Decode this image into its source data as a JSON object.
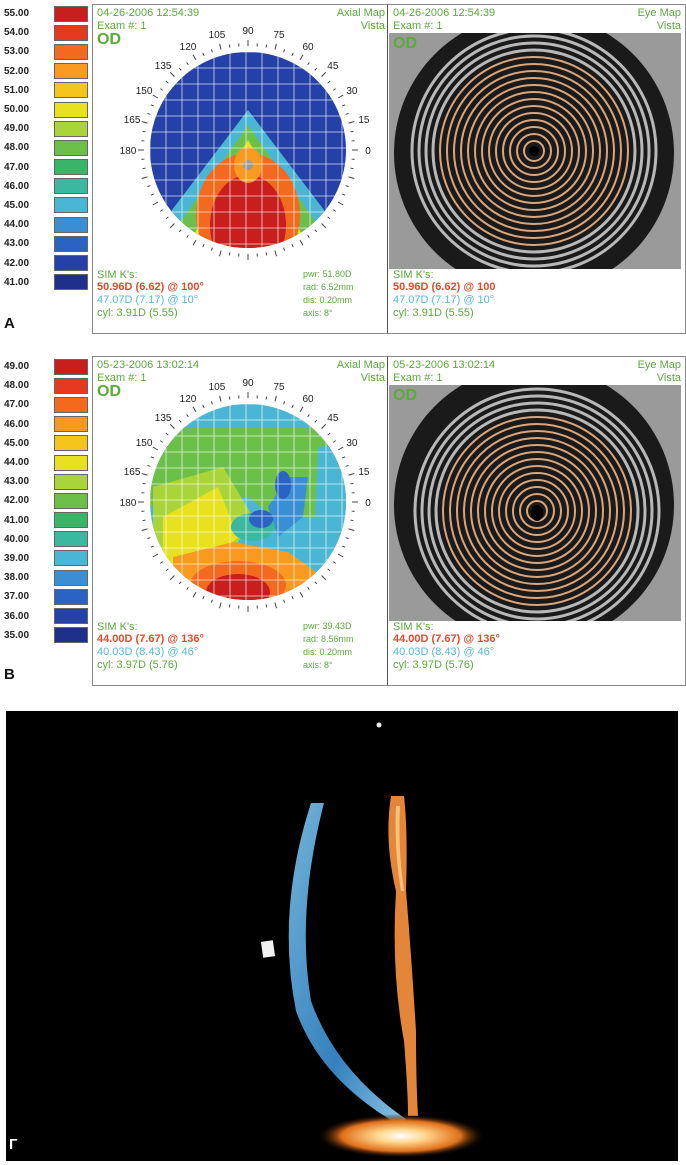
{
  "panels": {
    "A": {
      "label": "A",
      "scale": [
        "55.00",
        "54.00",
        "53.00",
        "52.00",
        "51.00",
        "50.00",
        "49.00",
        "48.00",
        "47.00",
        "46.00",
        "45.00",
        "44.00",
        "43.00",
        "42.00",
        "41.00"
      ],
      "left": {
        "datetime": "04-26-2006 12:54:39",
        "map_name": "Axial Map",
        "device": "Vista",
        "exam": "Exam #: 1",
        "eye": "OD",
        "sim_k": "SIM K's:",
        "k_steep": "50.96D (6.62) @ 100°",
        "k_flat": "47.07D (7.17) @ 10°",
        "cyl": "cyl: 3.91D (5.55)",
        "pwr": "pwr: 51.80D",
        "rad": "rad: 6.52mm",
        "dis": "dis: 0.20mm",
        "axis": "axis: 8°"
      },
      "right": {
        "datetime": "04-26-2006 12:54:39",
        "map_name": "Eye Map",
        "device": "Vista",
        "exam": "Exam #: 1",
        "eye": "OD",
        "sim_k": "SIM K's:",
        "k_steep": "50.96D (6.62) @ 100",
        "k_flat": "47.07D (7.17) @ 10°",
        "cyl": "cyl: 3.91D (5.55)"
      }
    },
    "B": {
      "label": "B",
      "scale": [
        "49.00",
        "48.00",
        "47.00",
        "46.00",
        "45.00",
        "44.00",
        "43.00",
        "42.00",
        "41.00",
        "40.00",
        "39.00",
        "38.00",
        "37.00",
        "36.00",
        "35.00"
      ],
      "left": {
        "datetime": "05-23-2006 13:02:14",
        "map_name": "Axial Map",
        "device": "Vista",
        "exam": "Exam #: 1",
        "eye": "OD",
        "sim_k": "SIM K's:",
        "k_steep": "44.00D (7.67) @ 136°",
        "k_flat": "40.03D (8.43) @ 46°",
        "cyl": "cyl: 3.97D (5.76)",
        "pwr": "pwr: 39.43D",
        "rad": "rad: 8.56mm",
        "dis": "dis: 0.20mm",
        "axis": "axis: 8°"
      },
      "right": {
        "datetime": "05-23-2006 13:02:14",
        "map_name": "Eye Map",
        "device": "Vista",
        "exam": "Exam #: 1",
        "eye": "OD",
        "sim_k": "SIM K's:",
        "k_steep": "44.00D (7.67) @ 136°",
        "k_flat": "40.03D (8.43) @ 46°",
        "cyl": "cyl: 3.97D (5.76)"
      }
    },
    "C": {
      "label": "Г"
    }
  },
  "angle_labels": [
    "90",
    "75",
    "60",
    "45",
    "30",
    "15",
    "0",
    "105",
    "120",
    "135",
    "150",
    "165",
    "180"
  ],
  "colors": {
    "scale_A": [
      "#c81e1e",
      "#e33a1e",
      "#f36a1f",
      "#f79a1f",
      "#f4c51c",
      "#e7e11f",
      "#a9d43a",
      "#6cc04a",
      "#3ab567",
      "#3ab8a0",
      "#4ab6d3",
      "#3a8fd4",
      "#2b63c2",
      "#2541a8",
      "#1e2f8c"
    ],
    "scale_B": [
      "#c81e1e",
      "#e33a1e",
      "#f36a1f",
      "#f79a1f",
      "#f4c51c",
      "#e7e11f",
      "#a9d43a",
      "#6cc04a",
      "#3ab567",
      "#3ab8a0",
      "#4ab6d3",
      "#3a8fd4",
      "#2b63c2",
      "#2541a8",
      "#1e2f8c"
    ],
    "green_text": "#5aab3a",
    "red_text": "#e34b2e",
    "cyan_text": "#58b7d6"
  }
}
